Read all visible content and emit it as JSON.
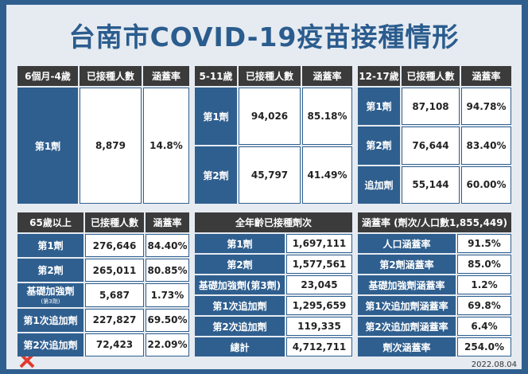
{
  "title": "台南市COVID-19疫苗接種情形",
  "panels": [
    {
      "headers": [
        "6個月-4歲",
        "已接種人數",
        "涵蓋率"
      ],
      "rows": [
        [
          "第1劑",
          "8,879",
          "14.8%"
        ]
      ]
    },
    {
      "headers": [
        "5-11歲",
        "已接種人數",
        "涵蓋率"
      ],
      "rows": [
        [
          "第1劑",
          "94,026",
          "85.18%"
        ],
        [
          "第2劑",
          "45,797",
          "41.49%"
        ]
      ]
    },
    {
      "headers": [
        "12-17歲",
        "已接種人數",
        "涵蓋率"
      ],
      "rows": [
        [
          "第1劑",
          "87,108",
          "94.78%"
        ],
        [
          "第2劑",
          "76,644",
          "83.40%"
        ],
        [
          "追加劑",
          "55,144",
          "60.00%"
        ]
      ]
    },
    {
      "headers": [
        "65歲以上",
        "已接種人數",
        "涵蓋率"
      ],
      "rows": [
        [
          "第1劑",
          "276,646",
          "84.40%"
        ],
        [
          "第2劑",
          "265,011",
          "80.85%"
        ],
        [
          [
            "基礎加強劑",
            "(第3劑)"
          ],
          "5,687",
          "1.73%"
        ],
        [
          "第1次追加劑",
          "227,827",
          "69.50%"
        ],
        [
          "第2次追加劑",
          "72,423",
          "22.09%"
        ]
      ]
    },
    {
      "headers": [
        "全年齡已接種劑次"
      ],
      "rows": [
        [
          "第1劑",
          "1,697,111"
        ],
        [
          "第2劑",
          "1,577,561"
        ],
        [
          "基礎加強劑(第3劑)",
          "23,045"
        ],
        [
          "第1次追加劑",
          "1,295,659"
        ],
        [
          "第2次追加劑",
          "119,335"
        ],
        [
          "總計",
          "4,712,711"
        ]
      ]
    },
    {
      "headers": [
        "涵蓋率 (劑次/人口數1,855,449)"
      ],
      "rows": [
        [
          "人口涵蓋率",
          "91.5%"
        ],
        [
          "第2劑涵蓋率",
          "85.0%"
        ],
        [
          "基礎加強劑涵蓋率",
          "1.2%"
        ],
        [
          "第1次追加劑涵蓋率",
          "69.8%"
        ],
        [
          "第2次追加劑涵蓋率",
          "6.4%"
        ],
        [
          "劑次涵蓋率",
          "254.0%"
        ]
      ]
    }
  ],
  "date": "2022.08.04"
}
